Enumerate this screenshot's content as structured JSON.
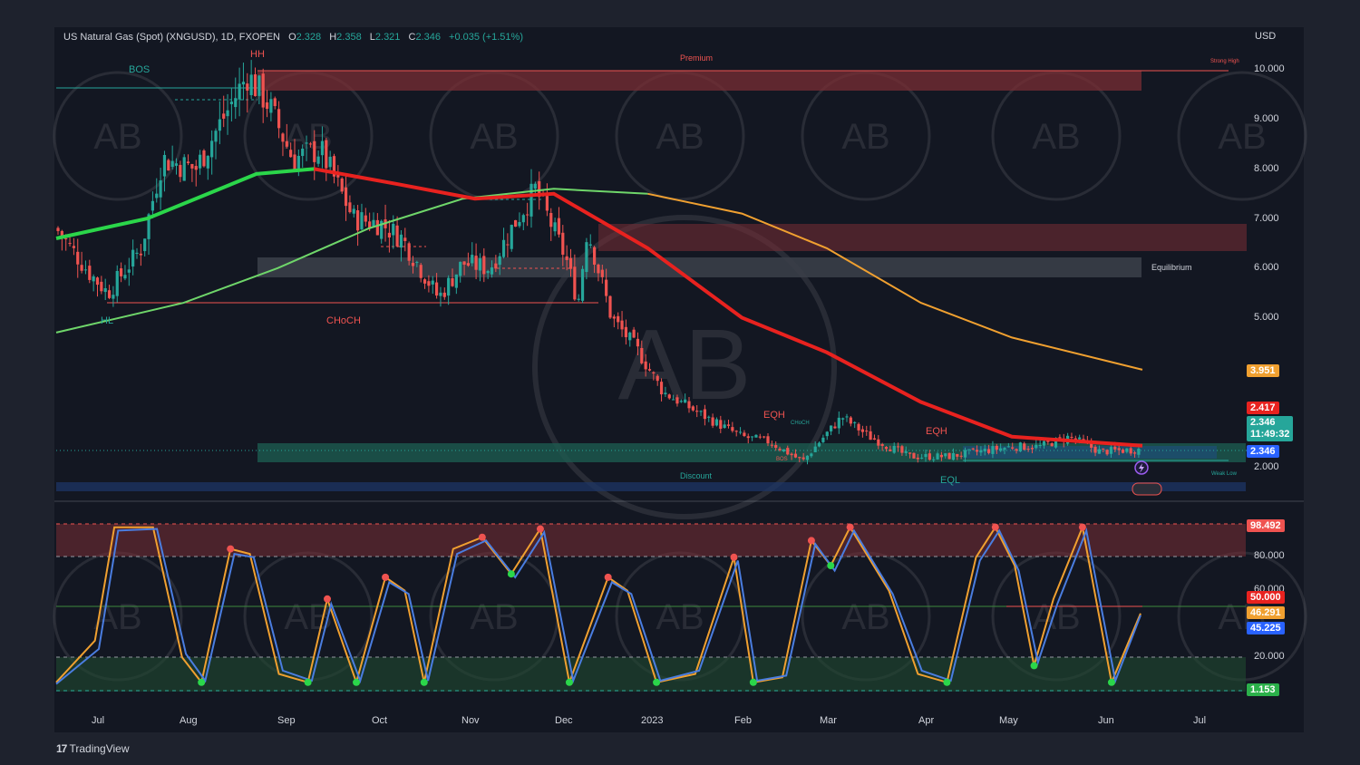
{
  "header": {
    "symbol": "US Natural Gas (Spot) (XNGUSD), 1D, FXOPEN",
    "open_label": "O",
    "open": "2.328",
    "high_label": "H",
    "high": "2.358",
    "low_label": "L",
    "low": "2.321",
    "close_label": "C",
    "close": "2.346",
    "change": "+0.035 (+1.51%)",
    "currency": "USD"
  },
  "price_axis": [
    "10.000",
    "9.000",
    "8.000",
    "7.000",
    "6.000",
    "5.000",
    "2.000"
  ],
  "osc_axis": [
    "80.000",
    "60.000",
    "20.000"
  ],
  "time_axis": [
    "Jul",
    "Aug",
    "Sep",
    "Oct",
    "Nov",
    "Dec",
    "2023",
    "Feb",
    "Mar",
    "Apr",
    "May",
    "Jun",
    "Jul"
  ],
  "badges": {
    "ma_slow": "3.951",
    "ma_fast": "2.417",
    "last_price": "2.346",
    "countdown": "11:49:32",
    "last_price_2": "2.346",
    "osc_high": "98.492",
    "osc_mid": "50.000",
    "osc_k": "46.291",
    "osc_d": "45.225",
    "osc_low": "1.153"
  },
  "annotations": {
    "bos": "BOS",
    "hh": "HH",
    "hl": "HL",
    "choch": "CHoCH",
    "premium": "Premium",
    "strong_high": "Strong High",
    "equilibrium": "Equilibrium",
    "discount": "Discount",
    "eqh_1": "EQH",
    "eqh_2": "EQH",
    "eql": "EQL",
    "weak_low": "Weak Low",
    "small_choch": "CHoCH",
    "small_bos": "BOS"
  },
  "watermark": "AB",
  "brand": "TradingView",
  "colors": {
    "background": "#131722",
    "frame": "#1e222d",
    "up": "#26a69a",
    "down": "#ef5350",
    "ma_fast_green": "#2bd64a",
    "ma_fast_red": "#e8221f",
    "ma_slow_green": "#6fd66a",
    "ma_slow_orange": "#f0a030",
    "stoch_k": "#f0a030",
    "stoch_d": "#4a7de0",
    "premium_zone": "#7a2e34",
    "discount_zone": "#1d5b50",
    "equilibrium_zone": "#3a3e48"
  },
  "chart_data": [
    {
      "type": "candlestick",
      "title": "US Natural Gas (Spot) (XNGUSD), 1D, FXOPEN",
      "ylabel": "USD",
      "ylim": [
        1.4,
        10.4
      ],
      "x_tick_labels": [
        "Jul",
        "Aug",
        "Sep",
        "Oct",
        "Nov",
        "Dec",
        "2023",
        "Feb",
        "Mar",
        "Apr",
        "May",
        "Jun",
        "Jul"
      ],
      "y_tick_labels": [
        "10.000",
        "9.000",
        "8.000",
        "7.000",
        "6.000",
        "5.000",
        "2.000"
      ],
      "close_path": [
        [
          "2022-06-20",
          6.8
        ],
        [
          "2022-07-01",
          5.9
        ],
        [
          "2022-07-07",
          5.5
        ],
        [
          "2022-07-18",
          6.4
        ],
        [
          "2022-07-25",
          8.2
        ],
        [
          "2022-08-05",
          8.0
        ],
        [
          "2022-08-12",
          8.8
        ],
        [
          "2022-08-22",
          9.9
        ],
        [
          "2022-08-29",
          9.3
        ],
        [
          "2022-09-06",
          8.2
        ],
        [
          "2022-09-15",
          8.4
        ],
        [
          "2022-09-26",
          7.0
        ],
        [
          "2022-10-05",
          6.9
        ],
        [
          "2022-10-12",
          6.6
        ],
        [
          "2022-10-24",
          5.4
        ],
        [
          "2022-11-01",
          6.1
        ],
        [
          "2022-11-10",
          6.0
        ],
        [
          "2022-11-18",
          6.9
        ],
        [
          "2022-11-25",
          7.6
        ],
        [
          "2022-12-05",
          6.2
        ],
        [
          "2022-12-09",
          5.3
        ],
        [
          "2022-12-12",
          6.8
        ],
        [
          "2022-12-20",
          5.0
        ],
        [
          "2022-12-28",
          4.4
        ],
        [
          "2023-01-06",
          3.5
        ],
        [
          "2023-01-20",
          3.0
        ],
        [
          "2023-02-01",
          2.6
        ],
        [
          "2023-02-10",
          2.5
        ],
        [
          "2023-02-21",
          2.1
        ],
        [
          "2023-02-28",
          2.6
        ],
        [
          "2023-03-06",
          3.0
        ],
        [
          "2023-03-15",
          2.6
        ],
        [
          "2023-03-28",
          2.2
        ],
        [
          "2023-04-10",
          2.2
        ],
        [
          "2023-04-20",
          2.3
        ],
        [
          "2023-05-01",
          2.4
        ],
        [
          "2023-05-10",
          2.4
        ],
        [
          "2023-05-20",
          2.6
        ],
        [
          "2023-05-30",
          2.3
        ],
        [
          "2023-06-13",
          2.346
        ]
      ],
      "ma_fast": [
        [
          "2022-06-20",
          6.6
        ],
        [
          "2022-07-20",
          7.0
        ],
        [
          "2022-08-25",
          7.9
        ],
        [
          "2022-09-13",
          8.0
        ],
        [
          "2022-10-10",
          7.7
        ],
        [
          "2022-11-05",
          7.4
        ],
        [
          "2022-12-01",
          7.5
        ],
        [
          "2023-01-01",
          6.4
        ],
        [
          "2023-02-01",
          5.0
        ],
        [
          "2023-03-01",
          4.3
        ],
        [
          "2023-04-01",
          3.3
        ],
        [
          "2023-05-01",
          2.6
        ],
        [
          "2023-06-13",
          2.417
        ]
      ],
      "ma_slow": [
        [
          "2022-06-20",
          4.7
        ],
        [
          "2022-08-01",
          5.3
        ],
        [
          "2022-09-01",
          6.0
        ],
        [
          "2022-10-01",
          6.8
        ],
        [
          "2022-11-01",
          7.4
        ],
        [
          "2022-12-01",
          7.6
        ],
        [
          "2023-01-01",
          7.5
        ],
        [
          "2023-02-01",
          7.1
        ],
        [
          "2023-03-01",
          6.4
        ],
        [
          "2023-04-01",
          5.3
        ],
        [
          "2023-05-01",
          4.6
        ],
        [
          "2023-06-13",
          3.951
        ]
      ],
      "zones": [
        {
          "name": "Premium",
          "from": "2022-08-22",
          "to": "2023-06-13",
          "low": 9.55,
          "high": 10.0
        },
        {
          "name": "",
          "from": "2022-12-10",
          "to": "2023-07-25",
          "low": 6.4,
          "high": 7.0
        },
        {
          "name": "Equilibrium",
          "from": "2022-08-22",
          "to": "2023-06-13",
          "low": 5.8,
          "high": 6.2
        },
        {
          "name": "Discount",
          "from": "2022-08-22",
          "to": "2023-06-13",
          "low": 2.05,
          "high": 2.45
        }
      ],
      "last_price": 2.346
    },
    {
      "type": "line",
      "title": "",
      "ylim": [
        0,
        100
      ],
      "y_tick_labels": [
        "80.000",
        "60.000",
        "20.000"
      ],
      "levels": [
        1.153,
        20,
        50,
        80,
        98.492
      ],
      "series": [
        {
          "values": [
            [
              2.0,
              5
            ],
            [
              4.0,
              30
            ],
            [
              5.0,
              98
            ],
            [
              7.0,
              98
            ],
            [
              8.5,
              20
            ],
            [
              9.5,
              5
            ],
            [
              11.0,
              85
            ],
            [
              12.0,
              82
            ],
            [
              13.5,
              10
            ],
            [
              15.0,
              5
            ],
            [
              16.0,
              55
            ],
            [
              17.5,
              5
            ],
            [
              19.0,
              68
            ],
            [
              20.0,
              60
            ],
            [
              21.0,
              5
            ],
            [
              22.5,
              85
            ],
            [
              24.0,
              92
            ],
            [
              25.5,
              70
            ],
            [
              27.0,
              97
            ],
            [
              28.5,
              5
            ],
            [
              30.5,
              68
            ],
            [
              31.5,
              60
            ],
            [
              33.0,
              5
            ],
            [
              35.0,
              10
            ],
            [
              37.0,
              80
            ],
            [
              38.0,
              5
            ],
            [
              39.5,
              8
            ],
            [
              41.0,
              90
            ],
            [
              42.0,
              75
            ],
            [
              43.0,
              98
            ],
            [
              45.0,
              60
            ],
            [
              46.5,
              10
            ],
            [
              48.0,
              5
            ],
            [
              49.5,
              80
            ],
            [
              50.5,
              98
            ],
            [
              51.5,
              75
            ],
            [
              52.5,
              15
            ],
            [
              53.5,
              55
            ],
            [
              55.0,
              98
            ],
            [
              56.5,
              5
            ],
            [
              58.0,
              46.291
            ]
          ]
        },
        {
          "values": [
            [
              2.0,
              4
            ],
            [
              4.2,
              25
            ],
            [
              5.2,
              96
            ],
            [
              7.2,
              97
            ],
            [
              8.7,
              22
            ],
            [
              9.7,
              6
            ],
            [
              11.2,
              82
            ],
            [
              12.2,
              80
            ],
            [
              13.7,
              12
            ],
            [
              15.2,
              6
            ],
            [
              16.2,
              52
            ],
            [
              17.7,
              6
            ],
            [
              19.2,
              65
            ],
            [
              20.2,
              58
            ],
            [
              21.2,
              6
            ],
            [
              22.7,
              82
            ],
            [
              24.2,
              90
            ],
            [
              25.7,
              68
            ],
            [
              27.2,
              95
            ],
            [
              28.7,
              6
            ],
            [
              30.7,
              65
            ],
            [
              31.7,
              58
            ],
            [
              33.2,
              6
            ],
            [
              35.2,
              12
            ],
            [
              37.2,
              78
            ],
            [
              38.2,
              6
            ],
            [
              39.7,
              9
            ],
            [
              41.2,
              88
            ],
            [
              42.2,
              72
            ],
            [
              43.2,
              96
            ],
            [
              45.2,
              58
            ],
            [
              46.7,
              12
            ],
            [
              48.2,
              6
            ],
            [
              49.7,
              78
            ],
            [
              50.7,
              96
            ],
            [
              51.7,
              72
            ],
            [
              52.7,
              17
            ],
            [
              53.7,
              52
            ],
            [
              55.2,
              96
            ],
            [
              56.7,
              6
            ],
            [
              58.0,
              45.225
            ]
          ]
        }
      ]
    }
  ]
}
